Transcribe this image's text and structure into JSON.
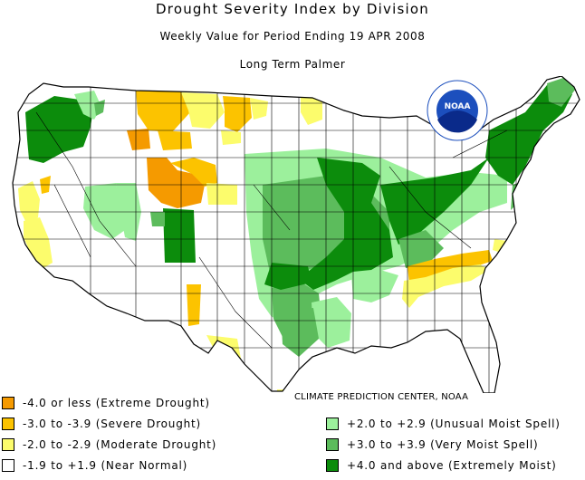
{
  "header": {
    "title": "Drought Severity Index by Division",
    "subtitle": "Weekly Value for Period Ending 19 APR 2008",
    "index_name": "Long Term Palmer"
  },
  "logo": {
    "text": "NOAA"
  },
  "credit": "CLIMATE PREDICTION CENTER, NOAA",
  "legend": {
    "left": [
      {
        "label": "-4.0 or less (Extreme Drought)",
        "color": "#f59a00"
      },
      {
        "label": "-3.0 to -3.9 (Severe Drought)",
        "color": "#fcc300"
      },
      {
        "label": "-2.0 to -2.9 (Moderate Drought)",
        "color": "#fcfc6c"
      },
      {
        "label": "-1.9 to +1.9 (Near Normal)",
        "color": "#ffffff"
      }
    ],
    "right": [
      {
        "label": "+2.0 to +2.9 (Unusual Moist Spell)",
        "color": "#9cf09c"
      },
      {
        "label": "+3.0 to +3.9 (Very Moist Spell)",
        "color": "#5cbc5c"
      },
      {
        "label": "+4.0 and above (Extremely Moist)",
        "color": "#0c8c0c"
      }
    ]
  }
}
